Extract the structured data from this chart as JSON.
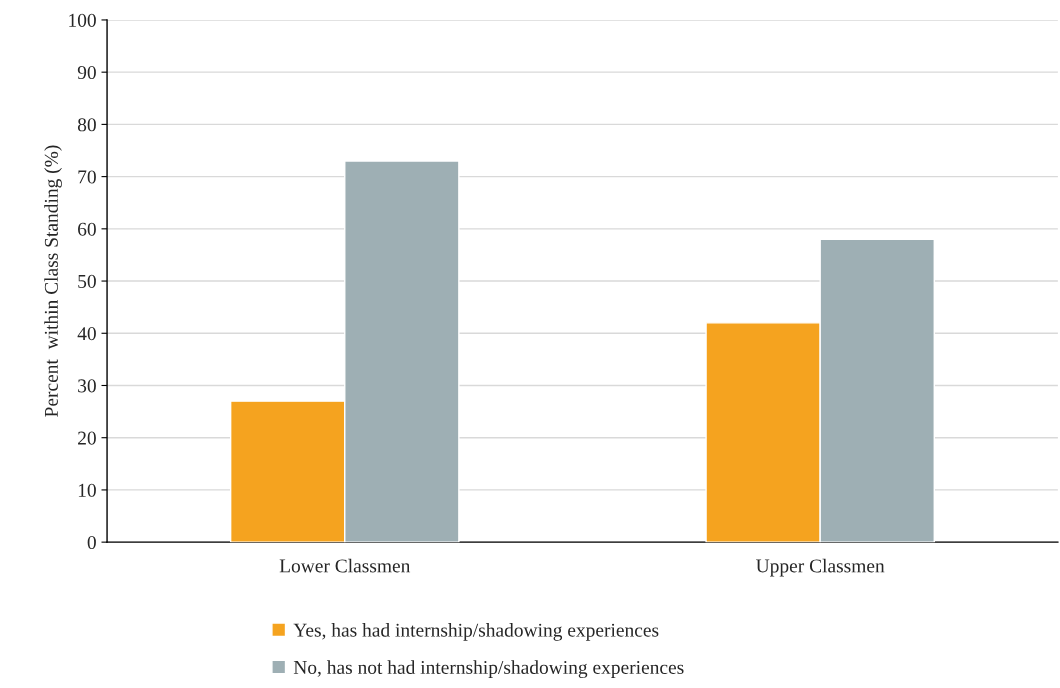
{
  "chart_data": {
    "type": "bar",
    "ylabel": "Percent  within Class Standing (%)",
    "categories": [
      "Lower Classmen",
      "Upper Classmen"
    ],
    "series": [
      {
        "name": "Yes, has had internship/shadowing experiences",
        "color": "#f5a31f",
        "values": [
          27,
          42
        ]
      },
      {
        "name": "No, has not had internship/shadowing experiences",
        "color": "#9eafb4",
        "values": [
          73,
          58
        ]
      }
    ],
    "ylim": [
      0,
      100
    ],
    "yticks": [
      0,
      10,
      20,
      30,
      40,
      50,
      60,
      70,
      80,
      90,
      100
    ],
    "grid": "y",
    "legend": "bottom"
  }
}
